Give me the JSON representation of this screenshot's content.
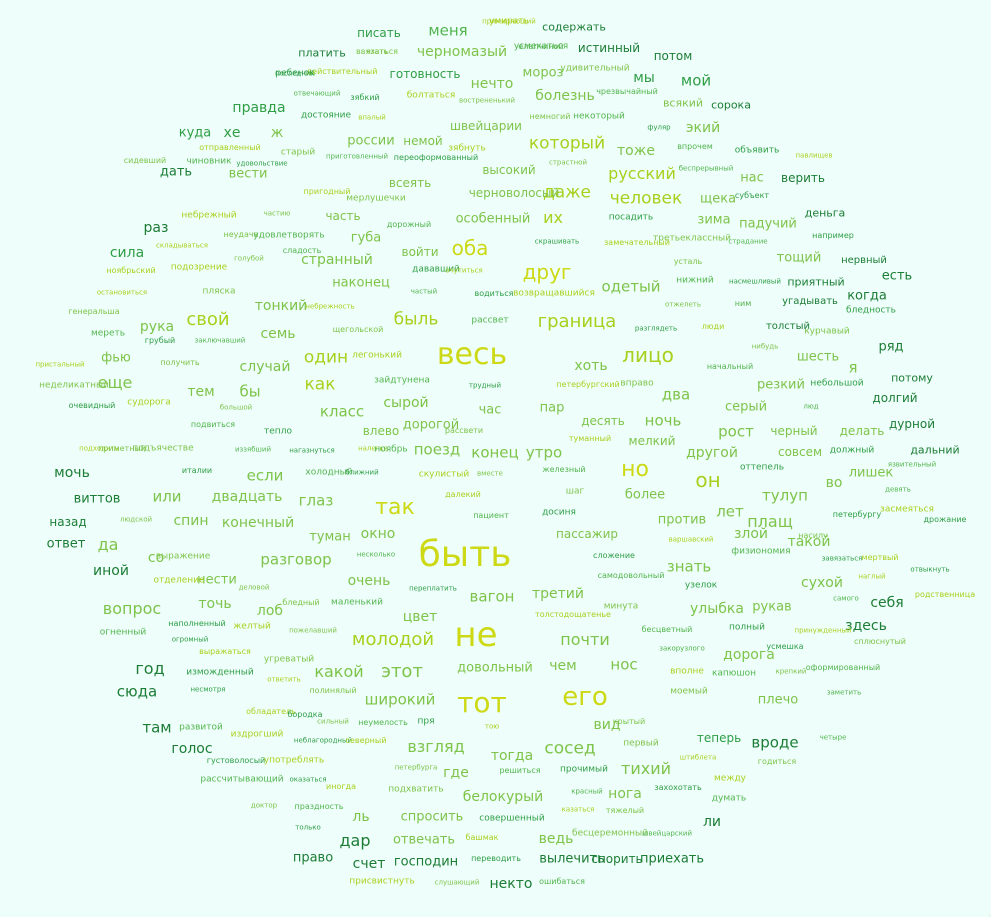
{
  "cloud": {
    "palette": [
      "#ccd914",
      "#a9d01e",
      "#7ec44a",
      "#53b54e",
      "#2f9e45",
      "#1c7d35"
    ],
    "words": [
      {
        "t": "быть",
        "s": 36,
        "c": 0
      },
      {
        "t": "весь",
        "s": 30,
        "c": 0
      },
      {
        "t": "не",
        "s": 34,
        "c": 0
      },
      {
        "t": "тот",
        "s": 28,
        "c": 0
      },
      {
        "t": "его",
        "s": 26,
        "c": 0
      },
      {
        "t": "так",
        "s": 22,
        "c": 0
      },
      {
        "t": "но",
        "s": 22,
        "c": 0
      },
      {
        "t": "он",
        "s": 20,
        "c": 1
      },
      {
        "t": "оба",
        "s": 20,
        "c": 0
      },
      {
        "t": "друг",
        "s": 20,
        "c": 0
      },
      {
        "t": "лицо",
        "s": 20,
        "c": 1
      },
      {
        "t": "граница",
        "s": 18,
        "c": 1
      },
      {
        "t": "быль",
        "s": 17,
        "c": 1
      },
      {
        "t": "свой",
        "s": 18,
        "c": 1
      },
      {
        "t": "один",
        "s": 17,
        "c": 1
      },
      {
        "t": "как",
        "s": 17,
        "c": 1
      },
      {
        "t": "молодой",
        "s": 18,
        "c": 1
      },
      {
        "t": "который",
        "s": 17,
        "c": 1
      },
      {
        "t": "человек",
        "s": 17,
        "c": 1
      },
      {
        "t": "даже",
        "s": 17,
        "c": 1
      },
      {
        "t": "русский",
        "s": 16,
        "c": 1
      },
      {
        "t": "их",
        "s": 16,
        "c": 1
      },
      {
        "t": "этот",
        "s": 18,
        "c": 2
      },
      {
        "t": "какой",
        "s": 16,
        "c": 2
      },
      {
        "t": "широкий",
        "s": 15,
        "c": 2
      },
      {
        "t": "сосед",
        "s": 17,
        "c": 2
      },
      {
        "t": "взгляд",
        "s": 16,
        "c": 2
      },
      {
        "t": "почти",
        "s": 16,
        "c": 2
      },
      {
        "t": "вагон",
        "s": 15,
        "c": 2
      },
      {
        "t": "вопрос",
        "s": 16,
        "c": 2
      },
      {
        "t": "тихий",
        "s": 16,
        "c": 2
      },
      {
        "t": "знать",
        "s": 15,
        "c": 2
      },
      {
        "t": "поезд",
        "s": 15,
        "c": 2
      },
      {
        "t": "конец",
        "s": 15,
        "c": 2
      },
      {
        "t": "утро",
        "s": 15,
        "c": 2
      },
      {
        "t": "разговор",
        "s": 15,
        "c": 2
      },
      {
        "t": "глаз",
        "s": 15,
        "c": 2
      },
      {
        "t": "плащ",
        "s": 16,
        "c": 2
      },
      {
        "t": "лет",
        "s": 15,
        "c": 2
      },
      {
        "t": "рост",
        "s": 15,
        "c": 2
      },
      {
        "t": "ночь",
        "s": 15,
        "c": 2
      },
      {
        "t": "два",
        "s": 15,
        "c": 2
      },
      {
        "t": "если",
        "s": 15,
        "c": 2
      },
      {
        "t": "или",
        "s": 15,
        "c": 2
      },
      {
        "t": "двадцать",
        "s": 14,
        "c": 2
      },
      {
        "t": "тулуп",
        "s": 15,
        "c": 2
      },
      {
        "t": "да",
        "s": 16,
        "c": 2
      },
      {
        "t": "еще",
        "s": 16,
        "c": 2
      },
      {
        "t": "тем",
        "s": 14,
        "c": 2
      },
      {
        "t": "бы",
        "s": 15,
        "c": 2
      },
      {
        "t": "класс",
        "s": 15,
        "c": 2
      },
      {
        "t": "странный",
        "s": 14,
        "c": 2
      },
      {
        "t": "тонкий",
        "s": 14,
        "c": 2
      },
      {
        "t": "одетый",
        "s": 15,
        "c": 2
      },
      {
        "t": "хоть",
        "s": 14,
        "c": 2
      },
      {
        "t": "особенный",
        "s": 13,
        "c": 2
      },
      {
        "t": "меня",
        "s": 15,
        "c": 3
      },
      {
        "t": "черномазый",
        "s": 14,
        "c": 2
      },
      {
        "t": "нечто",
        "s": 14,
        "c": 2
      },
      {
        "t": "болезнь",
        "s": 14,
        "c": 2
      },
      {
        "t": "мой",
        "s": 15,
        "c": 4
      },
      {
        "t": "правда",
        "s": 14,
        "c": 4
      },
      {
        "t": "куда",
        "s": 13,
        "c": 4
      },
      {
        "t": "хе",
        "s": 14,
        "c": 4
      },
      {
        "t": "ж",
        "s": 14,
        "c": 2
      },
      {
        "t": "мы",
        "s": 14,
        "c": 4
      },
      {
        "t": "тоже",
        "s": 14,
        "c": 2
      },
      {
        "t": "экий",
        "s": 14,
        "c": 2
      },
      {
        "t": "нас",
        "s": 13,
        "c": 2
      },
      {
        "t": "щека",
        "s": 13,
        "c": 2
      },
      {
        "t": "зима",
        "s": 13,
        "c": 2
      },
      {
        "t": "ряд",
        "s": 13,
        "c": 5
      },
      {
        "t": "я",
        "s": 15,
        "c": 2
      },
      {
        "t": "сила",
        "s": 14,
        "c": 4
      },
      {
        "t": "раз",
        "s": 14,
        "c": 5
      },
      {
        "t": "дать",
        "s": 13,
        "c": 5
      },
      {
        "t": "рука",
        "s": 14,
        "c": 2
      },
      {
        "t": "семь",
        "s": 14,
        "c": 2
      },
      {
        "t": "случай",
        "s": 14,
        "c": 2
      },
      {
        "t": "фью",
        "s": 13,
        "c": 2
      },
      {
        "t": "сырой",
        "s": 14,
        "c": 2
      },
      {
        "t": "окно",
        "s": 14,
        "c": 2
      },
      {
        "t": "очень",
        "s": 14,
        "c": 2
      },
      {
        "t": "нести",
        "s": 13,
        "c": 2
      },
      {
        "t": "точь",
        "s": 14,
        "c": 2
      },
      {
        "t": "лоб",
        "s": 14,
        "c": 2
      },
      {
        "t": "цвет",
        "s": 14,
        "c": 2
      },
      {
        "t": "третий",
        "s": 14,
        "c": 2
      },
      {
        "t": "пассажир",
        "s": 12,
        "c": 2
      },
      {
        "t": "такой",
        "s": 14,
        "c": 2
      },
      {
        "t": "злой",
        "s": 14,
        "c": 2
      },
      {
        "t": "против",
        "s": 13,
        "c": 2
      },
      {
        "t": "более",
        "s": 13,
        "c": 2
      },
      {
        "t": "во",
        "s": 14,
        "c": 2
      },
      {
        "t": "другой",
        "s": 14,
        "c": 2
      },
      {
        "t": "лишек",
        "s": 13,
        "c": 2
      },
      {
        "t": "сухой",
        "s": 14,
        "c": 2
      },
      {
        "t": "рукав",
        "s": 13,
        "c": 2
      },
      {
        "t": "улыбка",
        "s": 14,
        "c": 2
      },
      {
        "t": "себя",
        "s": 14,
        "c": 5
      },
      {
        "t": "здесь",
        "s": 14,
        "c": 5
      },
      {
        "t": "дорога",
        "s": 14,
        "c": 2
      },
      {
        "t": "нос",
        "s": 15,
        "c": 2
      },
      {
        "t": "чем",
        "s": 14,
        "c": 2
      },
      {
        "t": "довольный",
        "s": 13,
        "c": 2
      },
      {
        "t": "год",
        "s": 16,
        "c": 5
      },
      {
        "t": "сюда",
        "s": 15,
        "c": 5
      },
      {
        "t": "там",
        "s": 15,
        "c": 5
      },
      {
        "t": "голос",
        "s": 14,
        "c": 5
      },
      {
        "t": "вроде",
        "s": 15,
        "c": 5
      },
      {
        "t": "теперь",
        "s": 12,
        "c": 4
      },
      {
        "t": "плечо",
        "s": 13,
        "c": 2
      },
      {
        "t": "вид",
        "s": 14,
        "c": 2
      },
      {
        "t": "где",
        "s": 14,
        "c": 2
      },
      {
        "t": "тогда",
        "s": 14,
        "c": 2
      },
      {
        "t": "белокурый",
        "s": 14,
        "c": 2
      },
      {
        "t": "спросить",
        "s": 13,
        "c": 2
      },
      {
        "t": "ль",
        "s": 14,
        "c": 2
      },
      {
        "t": "дар",
        "s": 16,
        "c": 5
      },
      {
        "t": "счет",
        "s": 14,
        "c": 5
      },
      {
        "t": "отвечать",
        "s": 13,
        "c": 2
      },
      {
        "t": "ведь",
        "s": 14,
        "c": 2
      },
      {
        "t": "нога",
        "s": 14,
        "c": 2
      },
      {
        "t": "ли",
        "s": 14,
        "c": 5
      },
      {
        "t": "некто",
        "s": 14,
        "c": 5
      },
      {
        "t": "вылечить",
        "s": 13,
        "c": 5
      },
      {
        "t": "приехать",
        "s": 13,
        "c": 5
      },
      {
        "t": "господин",
        "s": 13,
        "c": 5
      },
      {
        "t": "право",
        "s": 13,
        "c": 5
      },
      {
        "t": "спорить",
        "s": 12,
        "c": 5
      },
      {
        "t": "мочь",
        "s": 14,
        "c": 5
      },
      {
        "t": "виттов",
        "s": 13,
        "c": 5
      },
      {
        "t": "назад",
        "s": 12,
        "c": 5
      },
      {
        "t": "ответ",
        "s": 13,
        "c": 5
      },
      {
        "t": "иной",
        "s": 14,
        "c": 5
      },
      {
        "t": "со",
        "s": 14,
        "c": 2
      },
      {
        "t": "спин",
        "s": 14,
        "c": 2
      },
      {
        "t": "конечный",
        "s": 14,
        "c": 2
      },
      {
        "t": "туман",
        "s": 13,
        "c": 2
      },
      {
        "t": "час",
        "s": 13,
        "c": 2
      },
      {
        "t": "пар",
        "s": 13,
        "c": 2
      },
      {
        "t": "наконец",
        "s": 13,
        "c": 2
      },
      {
        "t": "россии",
        "s": 13,
        "c": 2
      },
      {
        "t": "немой",
        "s": 12,
        "c": 2
      },
      {
        "t": "вести",
        "s": 13,
        "c": 2
      },
      {
        "t": "всеять",
        "s": 12,
        "c": 2
      },
      {
        "t": "черноволосый",
        "s": 12,
        "c": 2
      },
      {
        "t": "часть",
        "s": 12,
        "c": 2
      },
      {
        "t": "губа",
        "s": 13,
        "c": 2
      },
      {
        "t": "войти",
        "s": 12,
        "c": 2
      },
      {
        "t": "высокий",
        "s": 12,
        "c": 2
      },
      {
        "t": "швейцарии",
        "s": 12,
        "c": 2
      },
      {
        "t": "мороз",
        "s": 13,
        "c": 2
      },
      {
        "t": "готовность",
        "s": 12,
        "c": 4
      },
      {
        "t": "истинный",
        "s": 12,
        "c": 5
      },
      {
        "t": "содержать",
        "s": 11,
        "c": 5
      },
      {
        "t": "писать",
        "s": 12,
        "c": 4
      },
      {
        "t": "платить",
        "s": 11,
        "c": 5
      },
      {
        "t": "потом",
        "s": 12,
        "c": 5
      },
      {
        "t": "сорока",
        "s": 11,
        "c": 5
      },
      {
        "t": "всякий",
        "s": 11,
        "c": 2
      },
      {
        "t": "верить",
        "s": 12,
        "c": 5
      },
      {
        "t": "деньга",
        "s": 11,
        "c": 5
      },
      {
        "t": "падучий",
        "s": 13,
        "c": 2
      },
      {
        "t": "тощий",
        "s": 13,
        "c": 2
      },
      {
        "t": "приятный",
        "s": 11,
        "c": 5
      },
      {
        "t": "нервный",
        "s": 10,
        "c": 5
      },
      {
        "t": "есть",
        "s": 13,
        "c": 5
      },
      {
        "t": "когда",
        "s": 13,
        "c": 5
      },
      {
        "t": "угадывать",
        "s": 10,
        "c": 5
      },
      {
        "t": "толстый",
        "s": 10,
        "c": 5
      },
      {
        "t": "шесть",
        "s": 13,
        "c": 2
      },
      {
        "t": "потому",
        "s": 11,
        "c": 5
      },
      {
        "t": "долгий",
        "s": 12,
        "c": 5
      },
      {
        "t": "дурной",
        "s": 12,
        "c": 5
      },
      {
        "t": "дальний",
        "s": 11,
        "c": 5
      },
      {
        "t": "делать",
        "s": 12,
        "c": 2
      },
      {
        "t": "совсем",
        "s": 12,
        "c": 2
      },
      {
        "t": "резкий",
        "s": 13,
        "c": 2
      },
      {
        "t": "серый",
        "s": 13,
        "c": 2
      },
      {
        "t": "черный",
        "s": 12,
        "c": 2
      },
      {
        "t": "десять",
        "s": 12,
        "c": 2
      },
      {
        "t": "мелкий",
        "s": 12,
        "c": 2
      },
      {
        "t": "влево",
        "s": 12,
        "c": 2
      },
      {
        "t": "дорогой",
        "s": 13,
        "c": 2
      },
      {
        "t": "нагаз",
        "s": 1,
        "c": 2
      }
    ],
    "small": [
      "примиряющий",
      "ввязаться",
      "усмехаться",
      "последний",
      "действительный",
      "удивительный",
      "отвечающий",
      "зябкий",
      "болтаться",
      "вострененький",
      "чрезвычайный",
      "достояние",
      "впалый",
      "немногий",
      "некоторый",
      "фуляр",
      "отправленный",
      "старый",
      "приготовленный",
      "переоформованный",
      "зябнуть",
      "страстной",
      "впрочем",
      "объявить",
      "павлищев",
      "сидевший",
      "чиновник",
      "удовольствие",
      "пригодный",
      "мерлушечки",
      "беспрерывный",
      "субъект",
      "небрежный",
      "частию",
      "дорожный",
      "посадить",
      "складываться",
      "неудача",
      "удовлетворять",
      "скрашивать",
      "замечательный",
      "третьеклассный",
      "страдание",
      "например",
      "подозрение",
      "голубой",
      "сладость",
      "дававший",
      "очутиться",
      "усталь",
      "нижний",
      "насмешливый",
      "ноябрьский",
      "пляска",
      "частый",
      "водиться",
      "возвращавшийся",
      "отжелеть",
      "ним",
      "бледность",
      "небрежность",
      "щегольской",
      "рассвет",
      "разглядеть",
      "люди",
      "курчавый",
      "заключавший",
      "грубый",
      "легонький",
      "нибудь",
      "начальный",
      "небольшой",
      "пристальный",
      "получить",
      "зайдтунена",
      "трудный",
      "петербургский",
      "вправо",
      "люд",
      "очевидный",
      "судорога",
      "большой",
      "подвиться",
      "тепло",
      "налегке",
      "рассвети",
      "ноябрь",
      "нагазнуться",
      "туманный",
      "подъячестве",
      "иззябший",
      "италии",
      "скулистый",
      "вместе",
      "железный",
      "оттепель",
      "подходить",
      "приметный",
      "холодный",
      "ближний",
      "далекий",
      "шаг",
      "девять",
      "петербургу",
      "засмеяться",
      "людской",
      "пациент",
      "досиня",
      "варшавский",
      "насилу",
      "физиономия",
      "завязаться",
      "мертвый",
      "выражение",
      "несколько",
      "сложение",
      "отделение",
      "деловой",
      "самодовольный",
      "узелок",
      "наглый",
      "бледный",
      "маленький",
      "переплатить",
      "толстодощатенье",
      "минута",
      "самого",
      "наполненный",
      "желтый",
      "пожелавший",
      "бесцветный",
      "полный",
      "принужденный",
      "сплюснутый",
      "огненный",
      "огромный",
      "выражаться",
      "угреватый",
      "закорузлого",
      "усмешка",
      "вполне",
      "крепкий",
      "оформированный",
      "изможденный",
      "ответить",
      "полинялый",
      "капюшон",
      "несмотря",
      "обладатель",
      "моемый",
      "заметить",
      "бородка",
      "издрогший",
      "сильный",
      "неумелость",
      "пря",
      "тою",
      "крытый",
      "развитой",
      "неблагородный",
      "северный",
      "первый",
      "четыре",
      "густоволосый",
      "употреблять",
      "петербурга",
      "решиться",
      "прочимый",
      "штиблета",
      "годиться",
      "рассчитывающий",
      "оказаться",
      "иногда",
      "подхватить",
      "красный",
      "захохотать",
      "между",
      "доктор",
      "праздность",
      "совершенный",
      "казаться",
      "тяжелый",
      "думать",
      "только",
      "башмак",
      "бесцеремонный",
      "швейцарский",
      "переводить",
      "присвистнуть",
      "слушающий",
      "ошибаться",
      "должный",
      "остановиться",
      "генеральша",
      "мереть",
      "отвыкнуть",
      "родственница",
      "неделикатный",
      "язвительный",
      "дрожание",
      "умирать",
      "ехать",
      "елапчиной",
      "ребенок"
    ]
  }
}
